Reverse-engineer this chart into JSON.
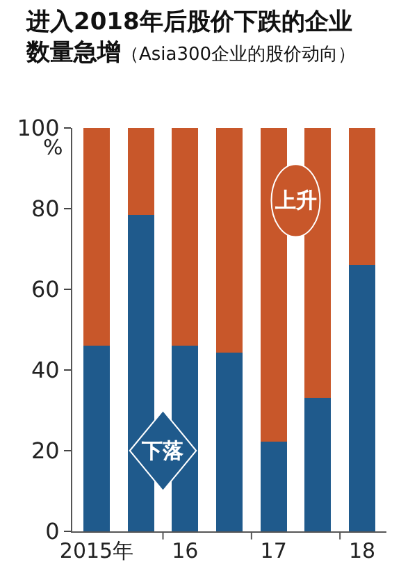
{
  "chart_data": {
    "type": "bar",
    "stacked": true,
    "title": "进入2018年后股价下跌的企业数量急增",
    "subtitle": "（Asia300企业的股价动向）",
    "ylabel": "%",
    "categories": [
      "2015年",
      null,
      "16",
      null,
      "17",
      null,
      "18"
    ],
    "series": [
      {
        "name": "下落",
        "color": "#1f5a8c",
        "values": [
          46,
          78.4,
          46,
          44.3,
          22.2,
          33.1,
          66.1
        ]
      },
      {
        "name": "上升",
        "color": "#c8572a",
        "values": [
          54,
          21.6,
          54,
          55.7,
          77.8,
          66.9,
          33.9
        ]
      }
    ],
    "ylim": [
      0,
      100
    ],
    "yticks": [
      0,
      20,
      40,
      60,
      80,
      100
    ],
    "grid": false,
    "legend": false
  }
}
